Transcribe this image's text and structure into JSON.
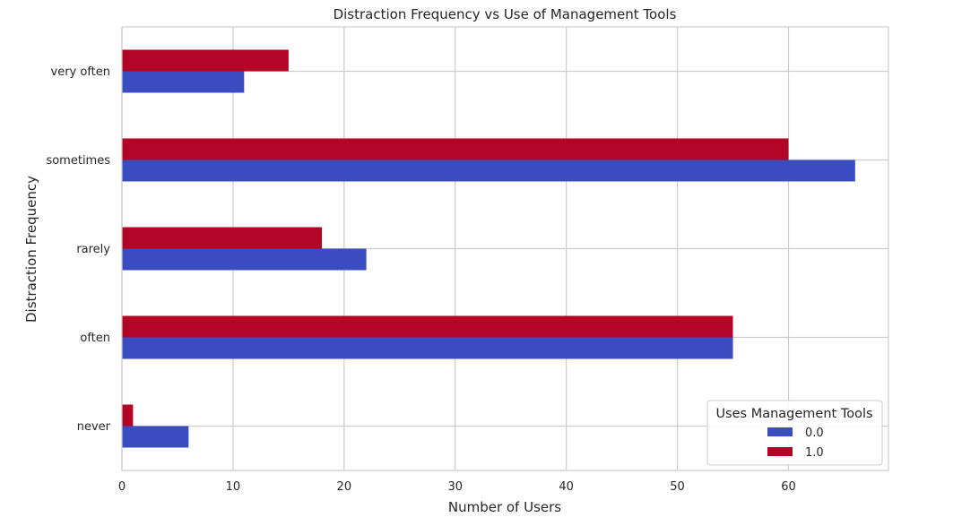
{
  "chart_data": {
    "type": "bar",
    "orientation": "horizontal",
    "title": "Distraction Frequency vs Use of Management Tools",
    "xlabel": "Number of Users",
    "ylabel": "Distraction Frequency",
    "categories": [
      "never",
      "often",
      "rarely",
      "sometimes",
      "very often"
    ],
    "series": [
      {
        "name": "0.0",
        "color": "#3b4cc0",
        "values": [
          6,
          55,
          22,
          66,
          11
        ]
      },
      {
        "name": "1.0",
        "color": "#b40426",
        "values": [
          1,
          55,
          18,
          60,
          15
        ]
      }
    ],
    "xlim": [
      0,
      69
    ],
    "xticks": [
      0,
      10,
      20,
      30,
      40,
      50,
      60
    ],
    "grid": true,
    "legend": {
      "title": "Uses Management Tools",
      "placement": "lower-right"
    }
  }
}
